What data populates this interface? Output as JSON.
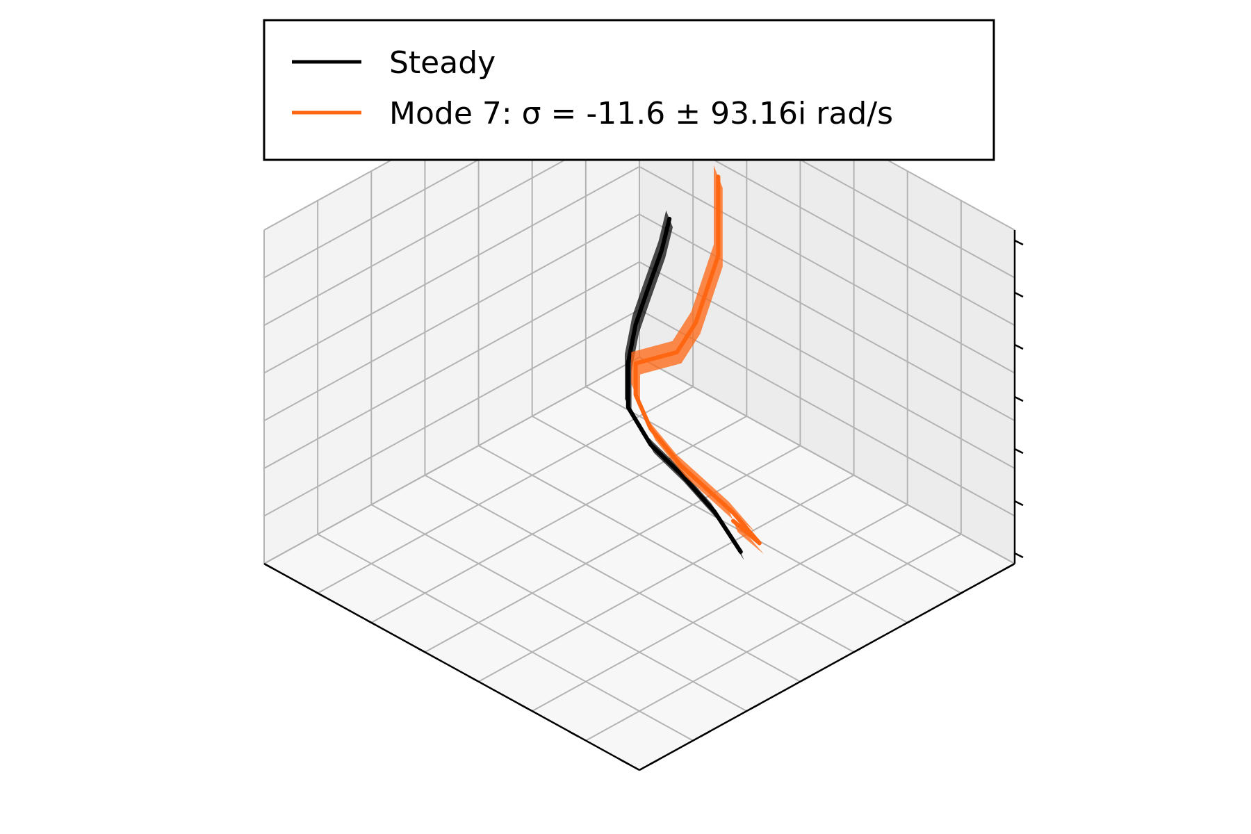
{
  "chart_data": {
    "type": "line",
    "projection": "3d",
    "title": "",
    "xlabel": "",
    "ylabel": "",
    "zlabel": "",
    "tick_labels_visible": false,
    "grid": true,
    "legend_position": "top",
    "series": [
      {
        "name": "Steady",
        "color": "#000000",
        "band_color": "#000000",
        "band_opacity": 0.7,
        "points": [
          [
            0.23,
            0.15,
            0.65
          ],
          [
            0.27,
            0.21,
            0.62
          ],
          [
            0.32,
            0.3,
            0.58
          ],
          [
            0.36,
            0.37,
            0.55
          ],
          [
            0.41,
            0.44,
            0.51
          ],
          [
            0.47,
            0.5,
            0.45
          ],
          [
            0.55,
            0.52,
            0.4
          ],
          [
            0.62,
            0.51,
            0.35
          ],
          [
            0.7,
            0.5,
            0.28
          ],
          [
            0.76,
            0.49,
            0.19
          ]
        ]
      },
      {
        "name": "Mode 7: σ = -11.6 ± 93.16i rad/s",
        "color": "#ff6611",
        "band_color": "#ff6611",
        "band_opacity": 0.75,
        "points": [
          [
            0.29,
            0.08,
            0.77
          ],
          [
            0.36,
            0.15,
            0.62
          ],
          [
            0.42,
            0.27,
            0.53
          ],
          [
            0.45,
            0.35,
            0.51
          ],
          [
            0.43,
            0.44,
            0.52
          ],
          [
            0.49,
            0.5,
            0.5
          ],
          [
            0.56,
            0.53,
            0.46
          ],
          [
            0.64,
            0.53,
            0.4
          ],
          [
            0.72,
            0.47,
            0.27
          ],
          [
            0.78,
            0.46,
            0.21
          ],
          [
            0.78,
            0.53,
            0.32
          ]
        ]
      }
    ]
  }
}
